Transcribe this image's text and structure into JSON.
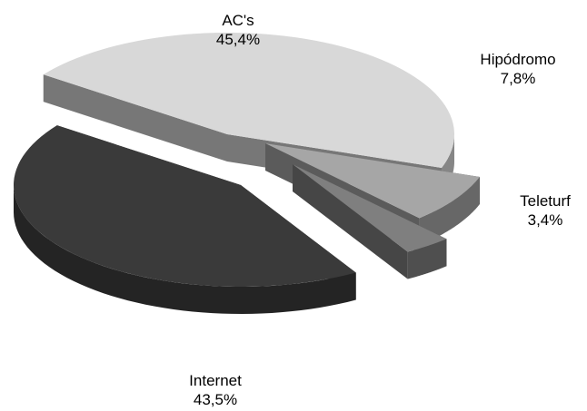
{
  "chart_data": {
    "type": "pie",
    "title": "",
    "legend": "none",
    "exploded": true,
    "three_d": true,
    "start_angle_deg": 216,
    "slices": [
      {
        "name": "AC's",
        "label": "AC's",
        "value_label": "45,4%",
        "value": 45.4,
        "color": "#d8d8d8"
      },
      {
        "name": "Hipódromo",
        "label": "Hipódromo",
        "value_label": "7,8%",
        "value": 7.8,
        "color": "#a6a6a6"
      },
      {
        "name": "Teleturf",
        "label": "Teleturf",
        "value_label": "3,4%",
        "value": 3.4,
        "color": "#7f7f7f"
      },
      {
        "name": "Internet",
        "label": "Internet",
        "value_label": "43,5%",
        "value": 43.5,
        "color": "#3a3a3a"
      }
    ]
  }
}
